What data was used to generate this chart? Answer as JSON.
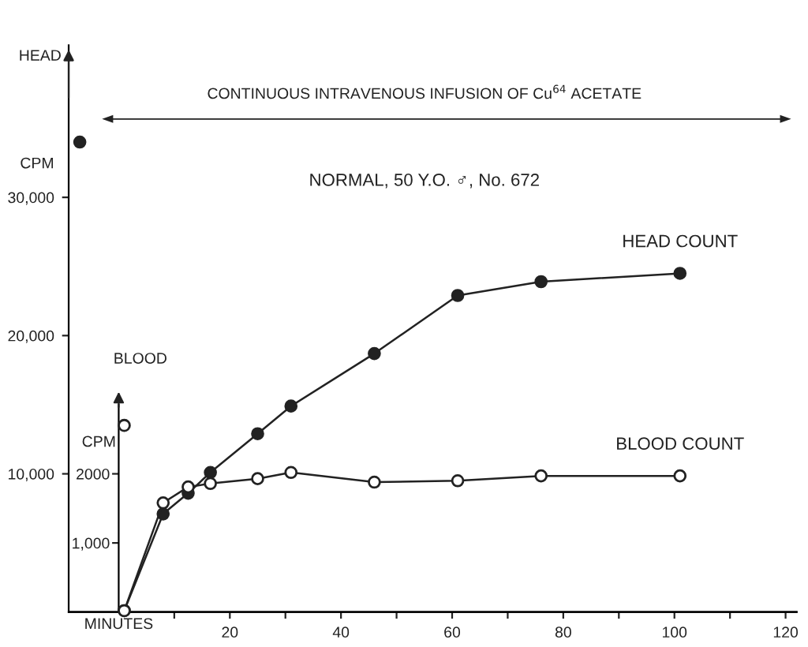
{
  "chart_data": {
    "type": "line",
    "annotations": [
      "CONTINUOUS INTRAVENOUS INFUSION OF Cu$^{64}$ ACETATE",
      "NORMAL, 50 Y.O. ♂, No. 672",
      "CPM",
      "CPM"
    ],
    "xlabel": "MINUTES",
    "ylabel": "HEAD",
    "y2label": "BLOOD",
    "series": [
      {
        "name": "HEAD COUNT",
        "color": "#222222",
        "marker": "circle",
        "x": [
          1,
          8,
          12.5,
          16.5,
          25,
          31,
          46,
          61,
          76,
          101
        ],
        "values": [
          100,
          7100,
          8600,
          10100,
          12900,
          14900,
          18700,
          22900,
          23900,
          24500
        ]
      },
      {
        "name": "BLOOD COUNT",
        "color": "#222222",
        "marker": "circle",
        "axis": "y2",
        "x": [
          1,
          8,
          12.5,
          16.5,
          25,
          31,
          46,
          61,
          76,
          101
        ],
        "values": [
          20,
          1580,
          1810,
          1860,
          1930,
          2020,
          1880,
          1900,
          1970,
          1970
        ]
      },
      {
        "type": "scatter",
        "color": "#222222",
        "marker": "circle",
        "x": [
          -7
        ],
        "values": [
          34000
        ]
      },
      {
        "type": "scatter",
        "color": "#222222",
        "marker": "circle",
        "axis": "y2",
        "x": [
          1
        ],
        "values": [
          2700
        ]
      }
    ],
    "xlim": [
      -9,
      122
    ],
    "xticks": [
      {
        "value": 10,
        "label": null
      },
      20,
      {
        "value": 30,
        "label": null
      },
      40,
      {
        "value": 50,
        "label": null
      },
      60,
      {
        "value": 70,
        "label": null
      },
      80,
      {
        "value": 90,
        "label": null
      },
      100,
      {
        "value": 110,
        "label": null
      },
      120
    ],
    "ylim": [
      0,
      41000
    ],
    "yticks": [
      {
        "value": 10000,
        "label": "10,000"
      },
      {
        "value": 20000,
        "label": "20,000"
      },
      {
        "value": 30000,
        "label": "30,000"
      }
    ],
    "y2lim": [
      0,
      8200
    ],
    "y2ticks": [
      {
        "value": 1000,
        "label": "1,000"
      },
      2000
    ],
    "grid": false,
    "legend": false
  }
}
